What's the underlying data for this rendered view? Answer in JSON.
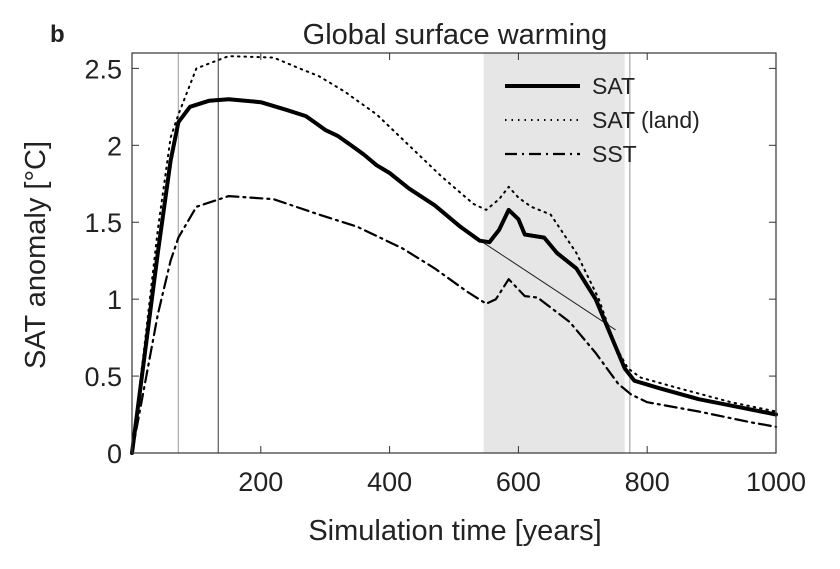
{
  "chart_data": {
    "type": "line",
    "panel_label": "b",
    "title": "Global surface warming",
    "xlabel": "Simulation time [years]",
    "ylabel": "SAT anomaly [°C]",
    "xlim": [
      0,
      1000
    ],
    "ylim": [
      0,
      2.6
    ],
    "xticks": [
      200,
      400,
      600,
      800,
      1000
    ],
    "yticks": [
      0,
      0.5,
      1,
      1.5,
      2,
      2.5
    ],
    "ytick_labels": [
      "0",
      "0.5",
      "1",
      "1.5",
      "2",
      "2.5"
    ],
    "grid": false,
    "legend_position": "top-right",
    "shaded_interval": [
      546,
      765
    ],
    "shade_color": "#e6e6e6",
    "vertical_lines": [
      {
        "x": 72,
        "color": "#b0b0b0"
      },
      {
        "x": 134,
        "color": "#666666"
      },
      {
        "x": 773,
        "color": "#b0b0b0"
      }
    ],
    "trend_line": {
      "x": [
        541,
        751
      ],
      "y": [
        1.38,
        0.8
      ]
    },
    "series": [
      {
        "name": "SAT",
        "style": "solid",
        "x": [
          0,
          20,
          40,
          60,
          72,
          90,
          120,
          150,
          200,
          240,
          270,
          290,
          300,
          320,
          340,
          360,
          380,
          400,
          430,
          470,
          510,
          540,
          555,
          570,
          585,
          600,
          610,
          640,
          660,
          690,
          720,
          745,
          765,
          780,
          820,
          880,
          940,
          1000
        ],
        "y": [
          0,
          0.65,
          1.3,
          1.9,
          2.15,
          2.25,
          2.29,
          2.3,
          2.28,
          2.23,
          2.19,
          2.13,
          2.1,
          2.06,
          2.0,
          1.94,
          1.87,
          1.82,
          1.72,
          1.61,
          1.47,
          1.38,
          1.37,
          1.45,
          1.58,
          1.52,
          1.42,
          1.4,
          1.3,
          1.2,
          1.0,
          0.75,
          0.55,
          0.47,
          0.42,
          0.35,
          0.3,
          0.25
        ]
      },
      {
        "name": "SAT (land)",
        "style": "dotted",
        "x": [
          0,
          20,
          40,
          60,
          72,
          100,
          150,
          220,
          260,
          290,
          330,
          380,
          430,
          480,
          530,
          550,
          570,
          585,
          600,
          620,
          650,
          690,
          725,
          750,
          770,
          790,
          850,
          930,
          1000
        ],
        "y": [
          0,
          0.72,
          1.45,
          2.05,
          2.2,
          2.5,
          2.58,
          2.57,
          2.5,
          2.45,
          2.35,
          2.2,
          2.0,
          1.8,
          1.62,
          1.58,
          1.65,
          1.73,
          1.66,
          1.6,
          1.55,
          1.3,
          1.0,
          0.7,
          0.55,
          0.49,
          0.42,
          0.33,
          0.27
        ]
      },
      {
        "name": "SST",
        "style": "dashdot",
        "x": [
          0,
          20,
          40,
          60,
          72,
          100,
          150,
          220,
          290,
          350,
          420,
          470,
          520,
          550,
          565,
          585,
          610,
          630,
          680,
          720,
          755,
          775,
          800,
          880,
          960,
          1000
        ],
        "y": [
          0,
          0.45,
          0.9,
          1.25,
          1.4,
          1.6,
          1.67,
          1.65,
          1.55,
          1.47,
          1.33,
          1.2,
          1.05,
          0.97,
          1.0,
          1.13,
          1.02,
          1.01,
          0.85,
          0.65,
          0.45,
          0.38,
          0.33,
          0.27,
          0.2,
          0.17
        ]
      }
    ]
  }
}
